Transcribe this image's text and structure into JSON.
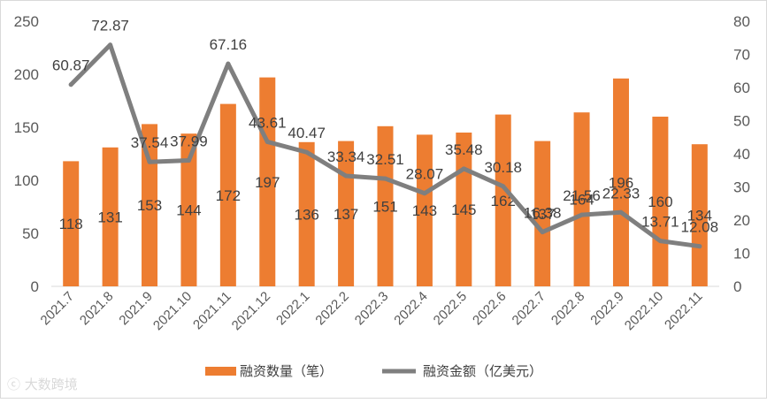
{
  "chart_data": {
    "type": "bar",
    "categories": [
      "2021.7",
      "2021.8",
      "2021.9",
      "2021.10",
      "2021.11",
      "2021.12",
      "2022.1",
      "2022.2",
      "2022.3",
      "2022.4",
      "2022.5",
      "2022.6",
      "2022.7",
      "2022.8",
      "2022.9",
      "2022.10",
      "2022.11"
    ],
    "series": [
      {
        "name": "融资数量（笔）",
        "type": "bar",
        "axis": "left",
        "color": "#ED7D31",
        "values": [
          118,
          131,
          153,
          144,
          172,
          197,
          136,
          137,
          151,
          143,
          145,
          162,
          137,
          164,
          196,
          160,
          134
        ],
        "labels": [
          "118",
          "131",
          "153",
          "144",
          "172",
          "197",
          "136",
          "137",
          "151",
          "143",
          "145",
          "162",
          "137",
          "164",
          "196",
          "160",
          "134"
        ]
      },
      {
        "name": "融资金额（亿美元）",
        "type": "line",
        "axis": "right",
        "color": "#7F7F7F",
        "values": [
          60.87,
          72.87,
          37.54,
          37.99,
          67.16,
          43.61,
          40.47,
          33.34,
          32.51,
          28.07,
          35.48,
          30.18,
          16.38,
          21.56,
          22.33,
          13.71,
          12.08
        ],
        "labels": [
          "60.87",
          "72.87",
          "37.54",
          "37.99",
          "67.16",
          "43.61",
          "40.47",
          "33.34",
          "32.51",
          "28.07",
          "35.48",
          "30.18",
          "16.38",
          "21.56",
          "22.33",
          "13.71",
          "12.08"
        ]
      }
    ],
    "y_left": {
      "min": 0,
      "max": 250,
      "ticks": [
        "0",
        "50",
        "100",
        "150",
        "200",
        "250"
      ]
    },
    "y_right": {
      "min": 0,
      "max": 80,
      "ticks": [
        "0",
        "10",
        "20",
        "30",
        "40",
        "50",
        "60",
        "70",
        "80"
      ]
    },
    "grid": false,
    "legend_position": "bottom"
  },
  "watermark": "大数跨境"
}
